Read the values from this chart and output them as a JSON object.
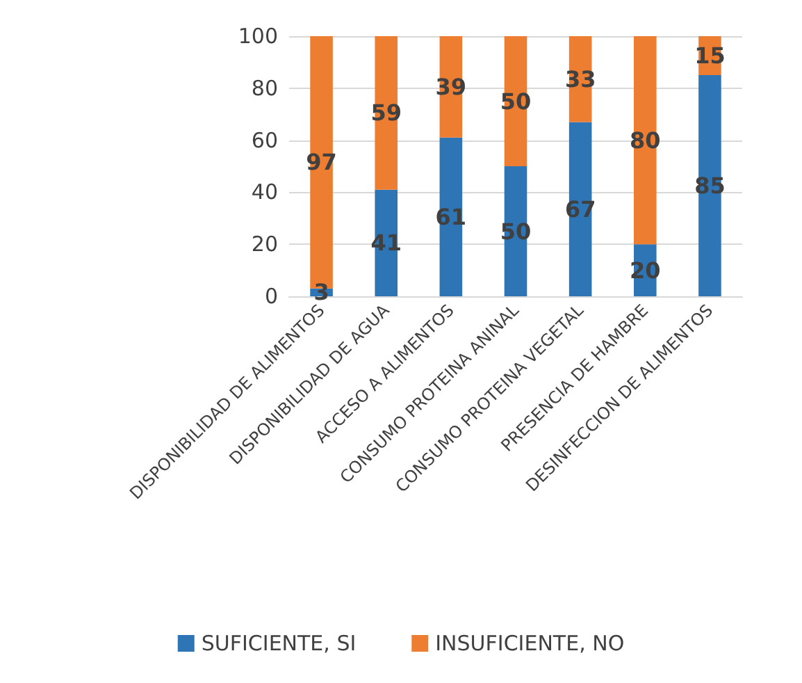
{
  "chart_data": {
    "type": "bar",
    "stacked": true,
    "categories": [
      "DISPONIBILIDAD DE ALIMENTOS",
      "DISPONIBILIDAD DE AGUA",
      "ACCESO A ALIMENTOS",
      "CONSUMO PROTEINA ANINAL",
      "CONSUMO PROTEINA VEGETAL",
      "PRESENCIA DE HAMBRE",
      "DESINFECCION DE ALIMENTOS"
    ],
    "series": [
      {
        "name": "SUFICIENTE, SI",
        "color": "#2e75b6",
        "values": [
          3,
          41,
          61,
          50,
          67,
          20,
          85
        ]
      },
      {
        "name": "INSUFICIENTE, NO",
        "color": "#ed7d31",
        "values": [
          97,
          59,
          39,
          50,
          33,
          80,
          15
        ]
      }
    ],
    "ylim": [
      0,
      100
    ],
    "yticks": [
      0,
      20,
      40,
      60,
      80,
      100
    ],
    "grid": "y",
    "legend": "bottom",
    "data_labels": true
  }
}
